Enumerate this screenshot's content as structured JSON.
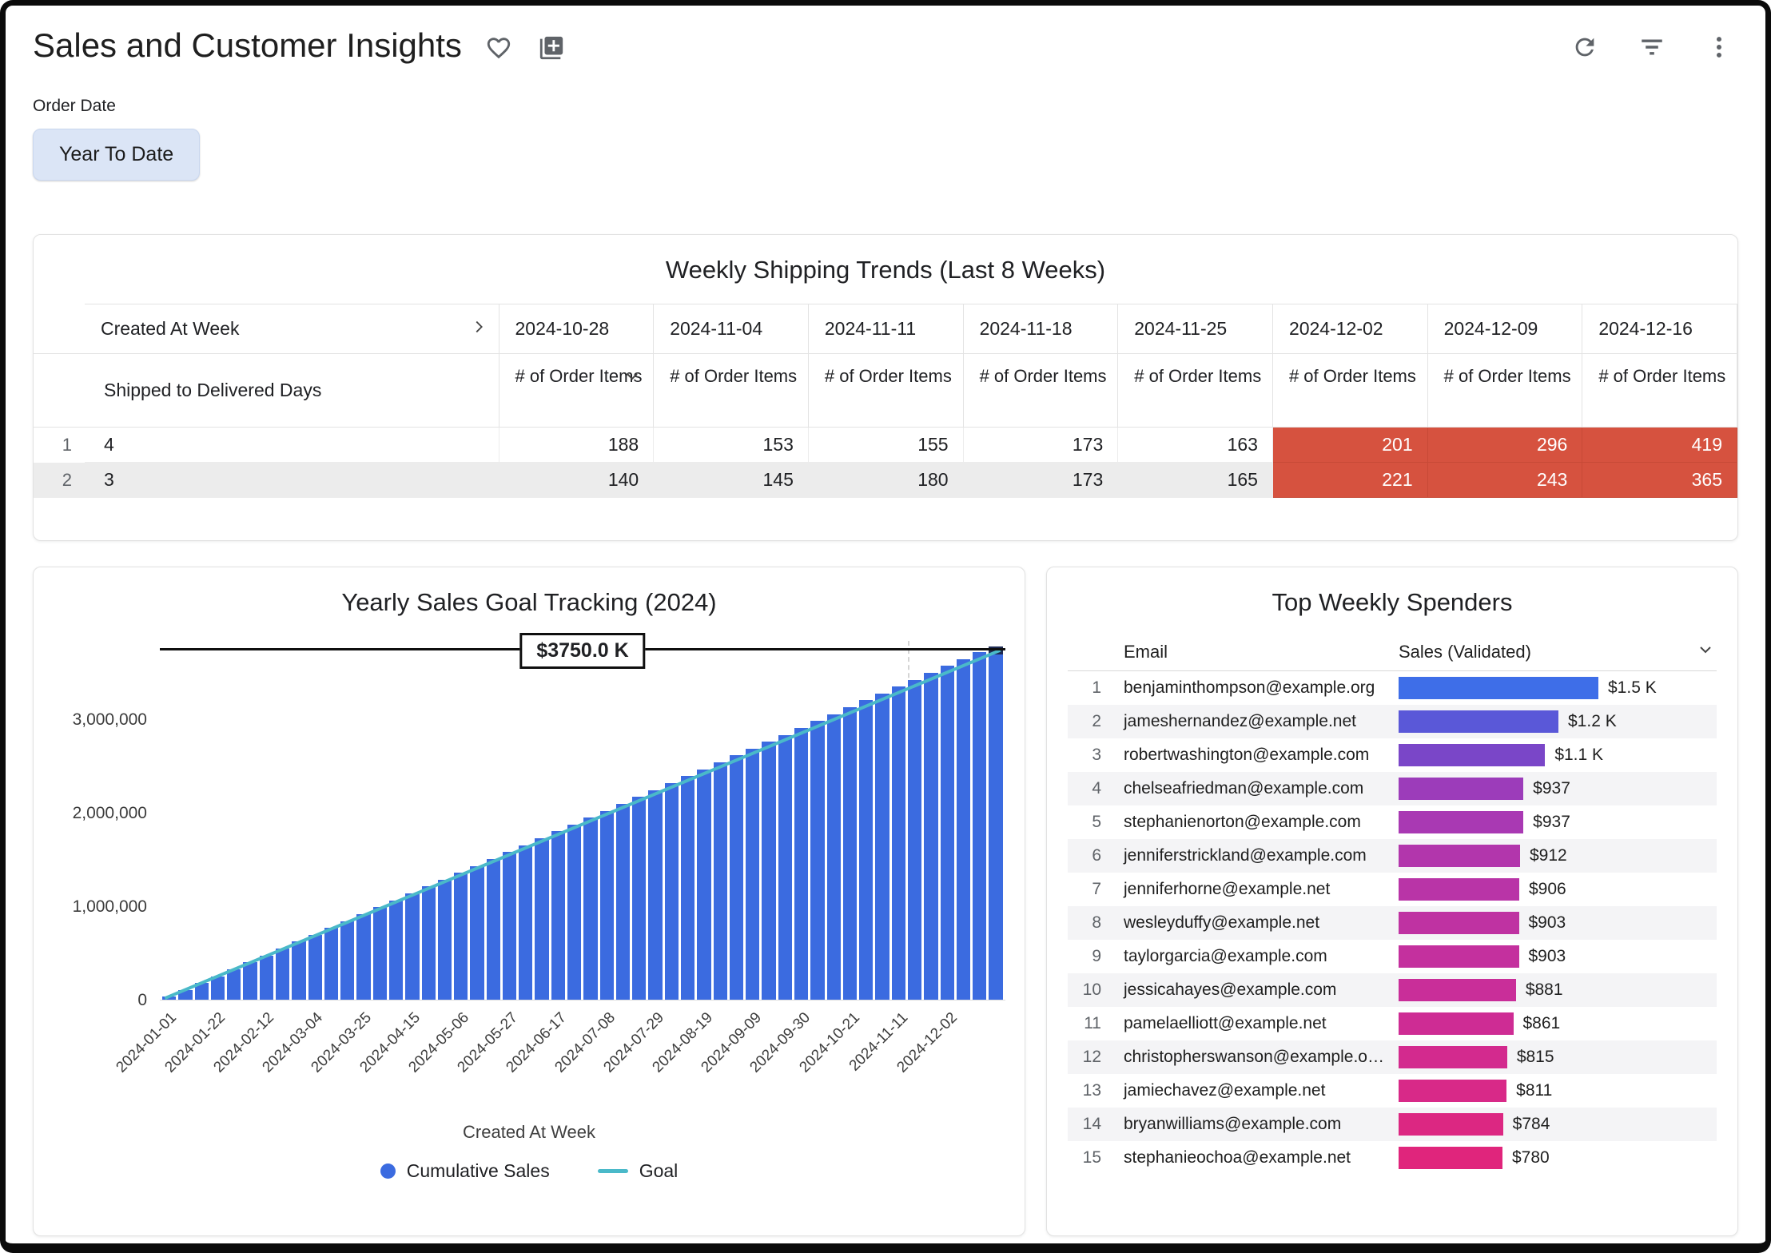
{
  "colors": {
    "bar_blue": "#3b6be0",
    "goal_teal": "#4ab9c9",
    "alert_red": "#d6523f",
    "icon_gray": "#5f6368",
    "chip_bg": "#dbe5f6"
  },
  "header": {
    "title": "Sales and Customer Insights"
  },
  "filter": {
    "label": "Order Date",
    "value": "Year To Date"
  },
  "shipping": {
    "title": "Weekly Shipping Trends (Last 8 Weeks)",
    "row_dim_header": "Created At Week",
    "col_dim_header": "Shipped to Delivered Days",
    "measure_header": "# of Order Items",
    "week_columns": [
      "2024-10-28",
      "2024-11-04",
      "2024-11-11",
      "2024-11-18",
      "2024-11-25",
      "2024-12-02",
      "2024-12-09",
      "2024-12-16"
    ],
    "rows": [
      {
        "num": "1",
        "label": "4",
        "values": [
          188,
          153,
          155,
          173,
          163,
          201,
          296,
          419
        ]
      },
      {
        "num": "2",
        "label": "3",
        "values": [
          140,
          145,
          180,
          173,
          165,
          221,
          243,
          365
        ]
      }
    ],
    "highlight_from_index": 5,
    "highlight_color": "#d6523f"
  },
  "chart_data": [
    {
      "type": "bar",
      "title": "Yearly Sales Goal Tracking (2024)",
      "xlabel": "Created At Week",
      "ylabel": "",
      "ylim": [
        0,
        3850000
      ],
      "plot_max_k": 3850,
      "goal_value_k": 3750,
      "goal_label": "$3750.0 K",
      "grid": "off",
      "legend_position": "bottom",
      "y_ticks": [
        "0",
        "1,000,000",
        "2,000,000",
        "3,000,000"
      ],
      "y_tick_values_k": [
        0,
        1000,
        2000,
        3000
      ],
      "x_tick_labels": [
        "2024-01-01",
        "2024-01-22",
        "2024-02-12",
        "2024-03-04",
        "2024-03-25",
        "2024-04-15",
        "2024-05-06",
        "2024-05-27",
        "2024-06-17",
        "2024-07-08",
        "2024-07-29",
        "2024-08-19",
        "2024-09-09",
        "2024-09-30",
        "2024-10-21",
        "2024-11-11",
        "2024-12-02"
      ],
      "x_tick_week_indices": [
        0,
        3,
        6,
        9,
        12,
        15,
        18,
        21,
        24,
        27,
        30,
        33,
        36,
        39,
        42,
        45,
        48
      ],
      "series": [
        {
          "name": "Cumulative Sales",
          "type": "bar",
          "color": "#3b6be0",
          "values_k": [
            35,
            105,
            178,
            252,
            326,
            400,
            474,
            548,
            622,
            696,
            770,
            844,
            918,
            992,
            1066,
            1140,
            1214,
            1288,
            1362,
            1436,
            1510,
            1584,
            1658,
            1732,
            1806,
            1880,
            1954,
            2028,
            2102,
            2176,
            2250,
            2324,
            2398,
            2472,
            2546,
            2620,
            2694,
            2768,
            2842,
            2916,
            2990,
            3064,
            3138,
            3212,
            3286,
            3360,
            3434,
            3508,
            3582,
            3656,
            3730,
            3790
          ]
        },
        {
          "name": "Goal",
          "type": "line",
          "color": "#4ab9c9",
          "start_k": 0,
          "end_k": 3750
        }
      ],
      "legend": [
        {
          "label": "Cumulative Sales",
          "marker": "circle",
          "color": "#3b6be0"
        },
        {
          "label": "Goal",
          "marker": "line",
          "color": "#4ab9c9"
        }
      ]
    },
    {
      "type": "bar",
      "title": "Top Weekly Spenders",
      "columns": [
        "Email",
        "Sales (Validated)"
      ],
      "max_value": 1500,
      "rows": [
        {
          "rank": "1",
          "email": "benjaminthompson@example.org",
          "value": 1500,
          "label": "$1.5 K",
          "color": "#3e6ee8"
        },
        {
          "rank": "2",
          "email": "jameshernandez@example.net",
          "value": 1200,
          "label": "$1.2 K",
          "color": "#5a58d8"
        },
        {
          "rank": "3",
          "email": "robertwashington@example.com",
          "value": 1100,
          "label": "$1.1 K",
          "color": "#7a46c8"
        },
        {
          "rank": "4",
          "email": "chelseafriedman@example.com",
          "value": 937,
          "label": "$937",
          "color": "#9c3cba"
        },
        {
          "rank": "5",
          "email": "stephanienorton@example.com",
          "value": 937,
          "label": "$937",
          "color": "#a939b3"
        },
        {
          "rank": "6",
          "email": "jenniferstrickland@example.com",
          "value": 912,
          "label": "$912",
          "color": "#b236ac"
        },
        {
          "rank": "7",
          "email": "jenniferhorne@example.net",
          "value": 906,
          "label": "$906",
          "color": "#b934a7"
        },
        {
          "rank": "8",
          "email": "wesleyduffy@example.net",
          "value": 903,
          "label": "$903",
          "color": "#bf32a2"
        },
        {
          "rank": "9",
          "email": "taylorgarcia@example.com",
          "value": 903,
          "label": "$903",
          "color": "#c4309e"
        },
        {
          "rank": "10",
          "email": "jessicahayes@example.com",
          "value": 881,
          "label": "$881",
          "color": "#c92e99"
        },
        {
          "rank": "11",
          "email": "pamelaelliott@example.net",
          "value": 861,
          "label": "$861",
          "color": "#ce2c94"
        },
        {
          "rank": "12",
          "email": "christopherswanson@example.o…",
          "value": 815,
          "label": "$815",
          "color": "#d32a8e"
        },
        {
          "rank": "13",
          "email": "jamiechavez@example.net",
          "value": 811,
          "label": "$811",
          "color": "#d82988"
        },
        {
          "rank": "14",
          "email": "bryanwilliams@example.com",
          "value": 784,
          "label": "$784",
          "color": "#dc2782"
        },
        {
          "rank": "15",
          "email": "stephanieochoa@example.net",
          "value": 780,
          "label": "$780",
          "color": "#e0257c"
        }
      ]
    }
  ]
}
